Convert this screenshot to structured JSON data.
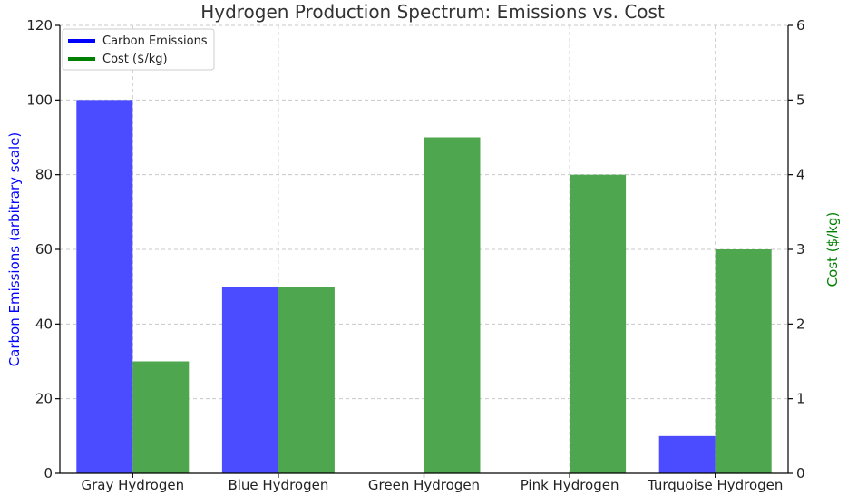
{
  "chart_data": {
    "type": "bar",
    "title": "Hydrogen Production Spectrum: Emissions vs. Cost",
    "categories": [
      "Gray Hydrogen",
      "Blue Hydrogen",
      "Green Hydrogen",
      "Pink Hydrogen",
      "Turquoise Hydrogen"
    ],
    "series": [
      {
        "name": "Carbon Emissions",
        "axis": "left",
        "color": "#4b4bff",
        "legend_color": "#0000ff",
        "values": [
          100,
          50,
          0,
          0,
          10
        ]
      },
      {
        "name": "Cost ($/kg)",
        "axis": "right",
        "color": "#4ea64e",
        "legend_color": "#008000",
        "values": [
          1.5,
          2.5,
          4.5,
          4.0,
          3.0
        ]
      }
    ],
    "ylabel_left": "Carbon Emissions (arbitrary scale)",
    "ylabel_right": "Cost ($/kg)",
    "ylim_left": [
      0,
      120
    ],
    "ylim_right": [
      0,
      6
    ],
    "yticks_left": [
      "0",
      "20",
      "40",
      "60",
      "80",
      "100",
      "120"
    ],
    "yticks_right": [
      "0",
      "1",
      "2",
      "3",
      "4",
      "5",
      "6"
    ],
    "grid": true,
    "legend_position": "top-left"
  }
}
